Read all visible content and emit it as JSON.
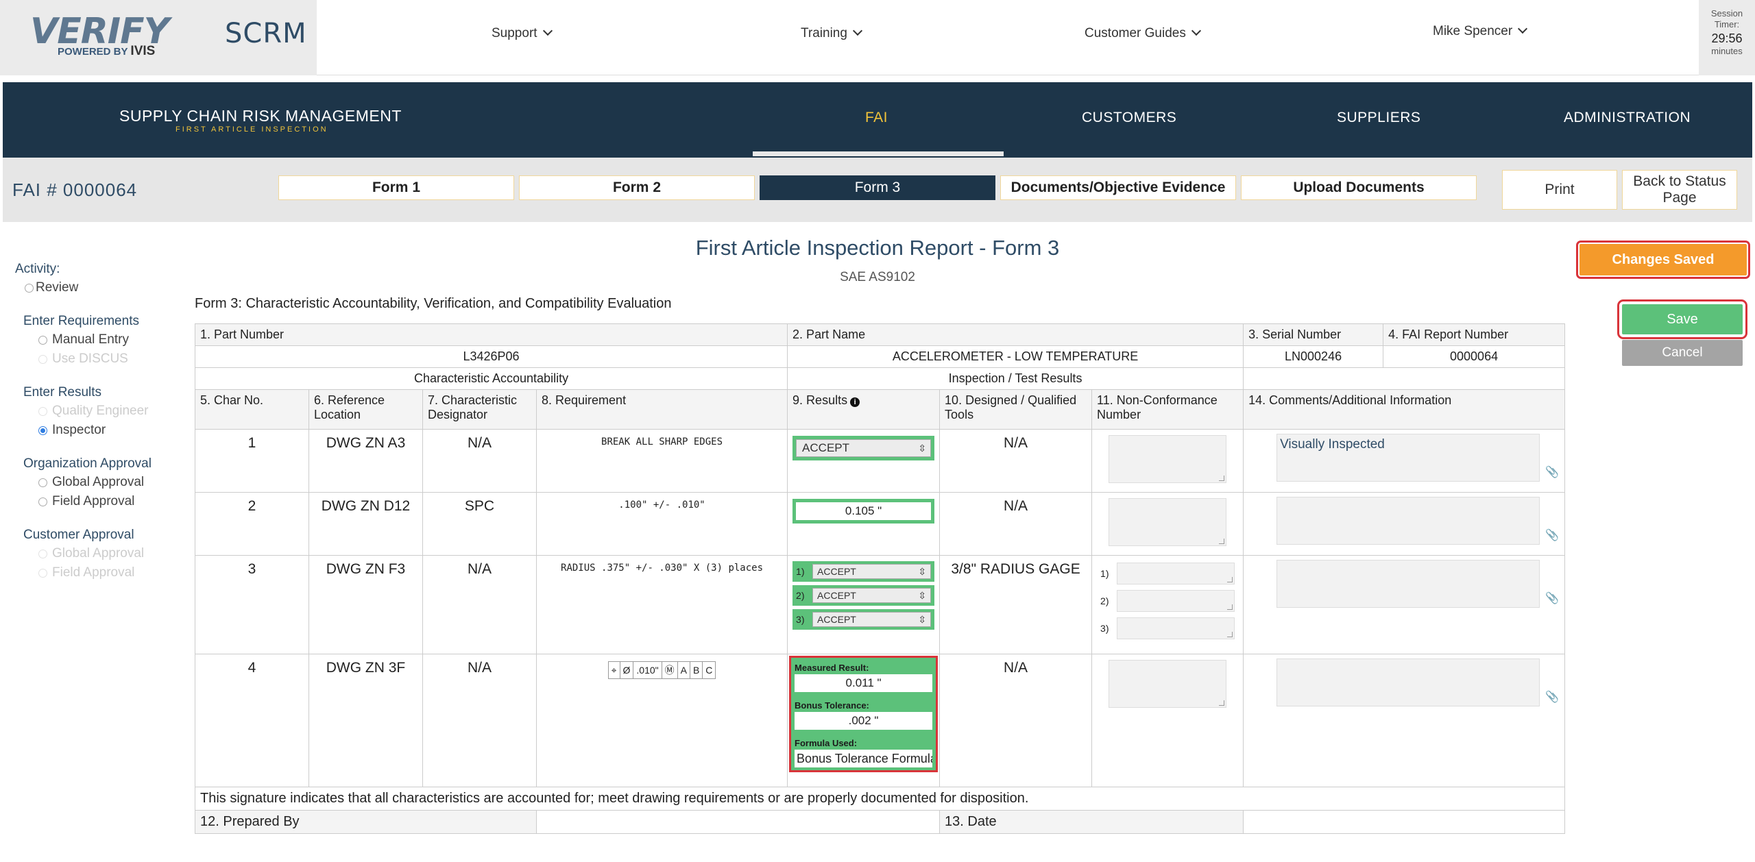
{
  "topbar": {
    "logo": {
      "verify": "VERIFY",
      "powered": "POWERED BY",
      "ivis": "IVIS"
    },
    "app_name": "SCRM",
    "nav": [
      {
        "label": "Support"
      },
      {
        "label": "Training"
      },
      {
        "label": "Customer Guides"
      }
    ],
    "user": "Mike Spencer",
    "session": {
      "label1": "Session",
      "label2": "Timer:",
      "time": "29:56",
      "unit": "minutes"
    }
  },
  "mainnav": {
    "brand": "SUPPLY CHAIN RISK MANAGEMENT",
    "brand_sub": "FIRST ARTICLE INSPECTION",
    "items": [
      {
        "label": "FAI"
      },
      {
        "label": "CUSTOMERS"
      },
      {
        "label": "SUPPLIERS"
      },
      {
        "label": "ADMINISTRATION"
      }
    ]
  },
  "subbar": {
    "fai_number": "FAI # 0000064",
    "tabs": [
      {
        "label": "Form 1"
      },
      {
        "label": "Form 2"
      },
      {
        "label": "Form 3"
      },
      {
        "label": "Documents/Objective Evidence"
      },
      {
        "label": "Upload Documents"
      }
    ],
    "print": "Print",
    "back": "Back to Status Page"
  },
  "sidebar": {
    "activity_label": "Activity:",
    "review": "Review",
    "enter_requirements": "Enter Requirements",
    "manual_entry": "Manual Entry",
    "use_discus": "Use DISCUS",
    "enter_results": "Enter Results",
    "quality_engineer": "Quality Engineer",
    "inspector": "Inspector",
    "org_approval": "Organization Approval",
    "global_approval": "Global Approval",
    "field_approval": "Field Approval",
    "customer_approval": "Customer Approval",
    "cust_global_approval": "Global Approval",
    "cust_field_approval": "Field Approval"
  },
  "page": {
    "title": "First Article Inspection Report - Form 3",
    "subtitle": "SAE AS9102",
    "form_heading": "Form 3: Characteristic Accountability, Verification, and Compatibility Evaluation",
    "changes_saved": "Changes Saved",
    "save": "Save",
    "cancel": "Cancel"
  },
  "form": {
    "h_part_number": "1. Part Number",
    "h_part_name": "2. Part Name",
    "h_serial": "3. Serial Number",
    "h_fai_report": "4. FAI Report Number",
    "part_number": "L3426P06",
    "part_name": "ACCELEROMETER - LOW TEMPERATURE",
    "serial": "LN000246",
    "fai_report": "0000064",
    "section_char": "Characteristic Accountability",
    "section_insp": "Inspection / Test Results",
    "cols": {
      "char_no": "5. Char No.",
      "ref_loc": "6. Reference Location",
      "char_des": "7. Characteristic Designator",
      "req": "8. Requirement",
      "results": "9. Results",
      "tools": "10. Designed / Qualified Tools",
      "ncn": "11. Non-Conformance Number",
      "comments": "14. Comments/Additional Information"
    },
    "rows": [
      {
        "no": "1",
        "ref": "DWG ZN A3",
        "des": "N/A",
        "req": "BREAK ALL SHARP EDGES",
        "result": "ACCEPT",
        "tools": "N/A",
        "comment": "Visually Inspected"
      },
      {
        "no": "2",
        "ref": "DWG ZN D12",
        "des": "SPC",
        "req": ".100\" +/- .010\"",
        "result": "0.105 \"",
        "tools": "N/A",
        "comment": ""
      },
      {
        "no": "3",
        "ref": "DWG ZN F3",
        "des": "N/A",
        "req": "RADIUS .375\" +/- .030\" X (3) places",
        "results": [
          "ACCEPT",
          "ACCEPT",
          "ACCEPT"
        ],
        "tools": "3/8\" RADIUS GAGE",
        "comment": ""
      },
      {
        "no": "4",
        "ref": "DWG ZN 3F",
        "des": "N/A",
        "gdt": [
          "⌖",
          "Ø",
          ".010\"",
          "Ⓜ",
          "A",
          "B",
          "C"
        ],
        "measured_label": "Measured Result:",
        "measured": "0.011 \"",
        "bonus_label": "Bonus Tolerance:",
        "bonus": ".002 \"",
        "formula_label": "Formula Used:",
        "formula": "Bonus Tolerance Formula",
        "tools": "N/A",
        "comment": ""
      }
    ],
    "signature_text": "This signature indicates that all characteristics are accounted for; meet drawing requirements or are properly documented for disposition.",
    "prepared_by": "12. Prepared By",
    "date": "13. Date",
    "sub_labels": [
      "1)",
      "2)",
      "3)"
    ]
  },
  "colors": {
    "navy": "#1d3549",
    "gold": "#f2c43a",
    "green": "#5cc17a",
    "orange": "#f49a2b",
    "red_outline": "#d9343a"
  }
}
